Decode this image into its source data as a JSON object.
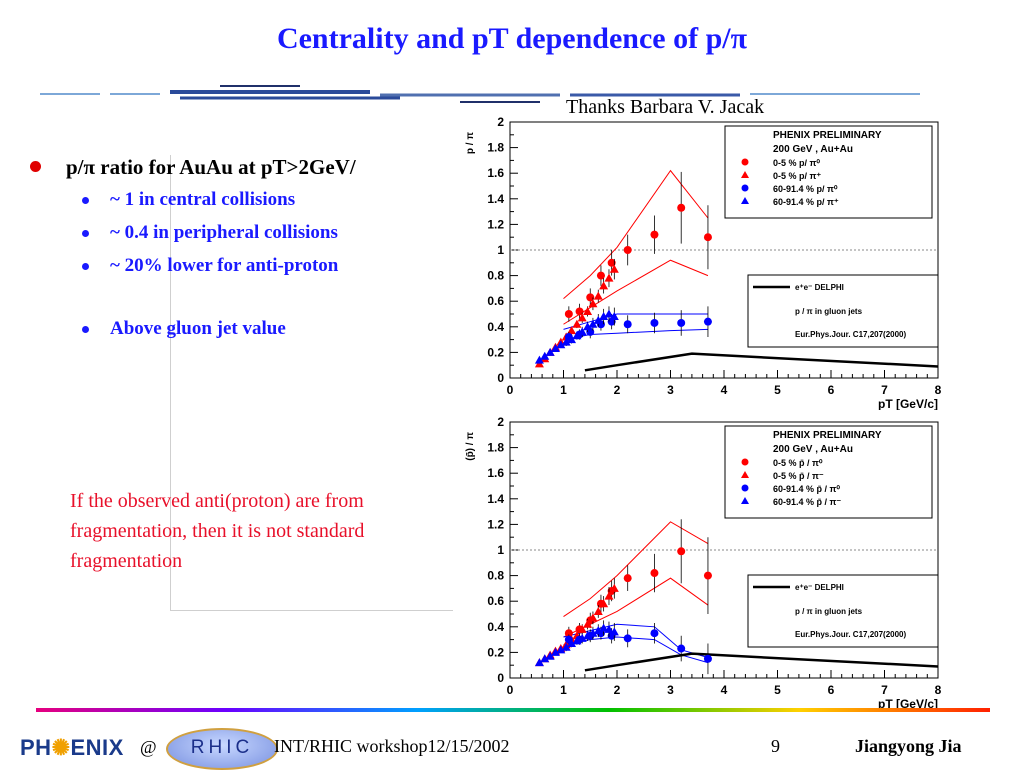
{
  "slide": {
    "title": "Centrality and pT dependence of p/π",
    "thanks": "Thanks Barbara V. Jacak",
    "bullet_main": "p/π ratio for AuAu at pT>2GeV/",
    "sub_bullets": [
      "~ 1 in central collisions",
      "~ 0.4 in peripheral collisions",
      "~ 20% lower for anti-proton"
    ],
    "bullet_gluon": "Above gluon jet value",
    "note_lines": [
      "If the observed anti(proton) are from",
      "fragmentation, then it is not standard",
      "fragmentation"
    ]
  },
  "footer": {
    "phenix_left": "PH",
    "phenix_right": "ENIX",
    "at": "@",
    "rhic": "RHIC",
    "workshop": "INT/RHIC workshop12/15/2002",
    "page": "9",
    "author": "Jiangyong Jia"
  },
  "colors": {
    "title": "#1a1aff",
    "bullet_dot": "#e00000",
    "note": "#e8102a",
    "central": "#ff0000",
    "peripheral": "#0000ff"
  },
  "chart_data": [
    {
      "type": "scatter",
      "ylabel": "p / π",
      "xlabel": "pT [GeV/c]",
      "xlim": [
        0,
        8
      ],
      "ylim": [
        0,
        2
      ],
      "xticks": [
        "0",
        "1",
        "2",
        "3",
        "4",
        "5",
        "6",
        "7",
        "8"
      ],
      "yticks": [
        "0",
        "0.2",
        "0.4",
        "0.6",
        "0.8",
        "1",
        "1.2",
        "1.4",
        "1.6",
        "1.8",
        "2"
      ],
      "legend_title": "PHENIX PRELIMINARY",
      "legend_subtitle": "200 GeV , Au+Au",
      "series": [
        {
          "name": "0-5 %    p/ π⁰",
          "marker": "circle",
          "color": "#ff0000",
          "x": [
            1.1,
            1.3,
            1.5,
            1.7,
            1.9,
            2.2,
            2.7,
            3.2,
            3.7
          ],
          "y": [
            0.5,
            0.52,
            0.63,
            0.8,
            0.9,
            1.0,
            1.12,
            1.33,
            1.1
          ],
          "err": [
            0.06,
            0.06,
            0.07,
            0.08,
            0.1,
            0.12,
            0.15,
            0.28,
            0.25
          ]
        },
        {
          "name": "0-5 %    p/ π⁺",
          "marker": "triangle",
          "color": "#ff0000",
          "x": [
            0.55,
            0.65,
            0.75,
            0.85,
            0.95,
            1.05,
            1.15,
            1.25,
            1.35,
            1.45,
            1.55,
            1.65,
            1.75,
            1.85,
            1.95
          ],
          "y": [
            0.11,
            0.15,
            0.2,
            0.24,
            0.28,
            0.32,
            0.37,
            0.42,
            0.47,
            0.52,
            0.58,
            0.64,
            0.72,
            0.78,
            0.85
          ],
          "err": [
            0.01,
            0.01,
            0.02,
            0.02,
            0.02,
            0.03,
            0.03,
            0.03,
            0.04,
            0.04,
            0.05,
            0.05,
            0.06,
            0.07,
            0.08
          ]
        },
        {
          "name": "60-91.4 % p/ π⁰",
          "marker": "circle",
          "color": "#0000ff",
          "x": [
            1.1,
            1.3,
            1.5,
            1.7,
            1.9,
            2.2,
            2.7,
            3.2,
            3.7
          ],
          "y": [
            0.32,
            0.34,
            0.36,
            0.42,
            0.44,
            0.42,
            0.43,
            0.43,
            0.44
          ],
          "err": [
            0.04,
            0.04,
            0.05,
            0.05,
            0.06,
            0.07,
            0.08,
            0.1,
            0.12
          ]
        },
        {
          "name": "60-91.4 % p/ π⁺",
          "marker": "triangle",
          "color": "#0000ff",
          "x": [
            0.55,
            0.65,
            0.75,
            0.85,
            0.95,
            1.05,
            1.15,
            1.25,
            1.35,
            1.45,
            1.55,
            1.65,
            1.75,
            1.85,
            1.95
          ],
          "y": [
            0.14,
            0.17,
            0.2,
            0.23,
            0.26,
            0.28,
            0.3,
            0.33,
            0.36,
            0.4,
            0.42,
            0.45,
            0.48,
            0.5,
            0.48
          ],
          "err": [
            0.01,
            0.01,
            0.02,
            0.02,
            0.02,
            0.03,
            0.03,
            0.03,
            0.04,
            0.04,
            0.05,
            0.05,
            0.06,
            0.06,
            0.07
          ]
        }
      ],
      "band_central": {
        "x": [
          1.0,
          1.5,
          2.0,
          3.0,
          3.7
        ],
        "upper": [
          0.62,
          0.8,
          1.02,
          1.62,
          1.25
        ],
        "lower": [
          0.42,
          0.55,
          0.68,
          0.92,
          0.8
        ]
      },
      "band_peripheral": {
        "x": [
          1.0,
          1.5,
          2.0,
          3.0,
          3.7
        ],
        "upper": [
          0.38,
          0.44,
          0.5,
          0.5,
          0.5
        ],
        "lower": [
          0.3,
          0.34,
          0.35,
          0.37,
          0.38
        ]
      },
      "gluon_curve": {
        "x": [
          1.4,
          2.0,
          3.4,
          8.0
        ],
        "y": [
          0.06,
          0.1,
          0.19,
          0.09
        ]
      },
      "reference_line_y": 1,
      "legend2": [
        "e⁺e⁻ DELPHI",
        "p / π in gluon jets",
        "Eur.Phys.Jour. C17,207(2000)"
      ]
    },
    {
      "type": "scatter",
      "ylabel": "(p̄) / π",
      "xlabel": "pT [GeV/c]",
      "xlim": [
        0,
        8
      ],
      "ylim": [
        0,
        2
      ],
      "xticks": [
        "0",
        "1",
        "2",
        "3",
        "4",
        "5",
        "6",
        "7",
        "8"
      ],
      "yticks": [
        "0",
        "0.2",
        "0.4",
        "0.6",
        "0.8",
        "1",
        "1.2",
        "1.4",
        "1.6",
        "1.8",
        "2"
      ],
      "legend_title": "PHENIX PRELIMINARY",
      "legend_subtitle": "200 GeV , Au+Au",
      "series": [
        {
          "name": "0-5 %    p̄ / π⁰",
          "marker": "circle",
          "color": "#ff0000",
          "x": [
            1.1,
            1.3,
            1.5,
            1.7,
            1.9,
            2.2,
            2.7,
            3.2,
            3.7
          ],
          "y": [
            0.35,
            0.38,
            0.45,
            0.58,
            0.68,
            0.78,
            0.82,
            0.99,
            0.8
          ],
          "err": [
            0.05,
            0.05,
            0.06,
            0.07,
            0.08,
            0.1,
            0.15,
            0.25,
            0.3
          ]
        },
        {
          "name": "0-5 %    p̄ / π⁻",
          "marker": "triangle",
          "color": "#ff0000",
          "x": [
            0.55,
            0.65,
            0.75,
            0.85,
            0.95,
            1.05,
            1.15,
            1.25,
            1.35,
            1.45,
            1.55,
            1.65,
            1.75,
            1.85,
            1.95
          ],
          "y": [
            0.12,
            0.15,
            0.18,
            0.21,
            0.23,
            0.26,
            0.3,
            0.33,
            0.38,
            0.42,
            0.47,
            0.52,
            0.58,
            0.64,
            0.7
          ],
          "err": [
            0.01,
            0.01,
            0.02,
            0.02,
            0.02,
            0.03,
            0.03,
            0.03,
            0.04,
            0.04,
            0.05,
            0.05,
            0.06,
            0.07,
            0.08
          ]
        },
        {
          "name": "60-91.4 %  p̄ / π⁰",
          "marker": "circle",
          "color": "#0000ff",
          "x": [
            1.1,
            1.3,
            1.5,
            1.7,
            1.9,
            2.2,
            2.7,
            3.2,
            3.7
          ],
          "y": [
            0.3,
            0.3,
            0.33,
            0.35,
            0.33,
            0.31,
            0.35,
            0.23,
            0.15
          ],
          "err": [
            0.04,
            0.04,
            0.05,
            0.05,
            0.06,
            0.07,
            0.08,
            0.1,
            0.12
          ]
        },
        {
          "name": "60-91.4 %  p̄ / π⁻",
          "marker": "triangle",
          "color": "#0000ff",
          "x": [
            0.55,
            0.65,
            0.75,
            0.85,
            0.95,
            1.05,
            1.15,
            1.25,
            1.35,
            1.45,
            1.55,
            1.65,
            1.75,
            1.85,
            1.95
          ],
          "y": [
            0.12,
            0.15,
            0.17,
            0.2,
            0.22,
            0.24,
            0.27,
            0.29,
            0.31,
            0.33,
            0.35,
            0.37,
            0.39,
            0.38,
            0.36
          ],
          "err": [
            0.01,
            0.01,
            0.02,
            0.02,
            0.02,
            0.03,
            0.03,
            0.03,
            0.04,
            0.04,
            0.05,
            0.05,
            0.06,
            0.06,
            0.07
          ]
        }
      ],
      "band_central": {
        "x": [
          1.0,
          1.5,
          2.0,
          3.0,
          3.7
        ],
        "upper": [
          0.48,
          0.62,
          0.8,
          1.22,
          1.05
        ],
        "lower": [
          0.32,
          0.42,
          0.52,
          0.78,
          0.57
        ]
      },
      "band_peripheral": {
        "x": [
          1.0,
          1.5,
          2.0,
          2.7,
          3.2,
          3.7
        ],
        "upper": [
          0.32,
          0.37,
          0.42,
          0.4,
          0.22,
          0.16
        ],
        "lower": [
          0.26,
          0.3,
          0.32,
          0.3,
          0.18,
          0.12
        ]
      },
      "gluon_curve": {
        "x": [
          1.4,
          2.0,
          3.4,
          8.0
        ],
        "y": [
          0.06,
          0.1,
          0.19,
          0.09
        ]
      },
      "reference_line_y": 1,
      "legend2": [
        "e⁺e⁻ DELPHI",
        "p / π in gluon jets",
        "Eur.Phys.Jour. C17,207(2000)"
      ]
    }
  ]
}
